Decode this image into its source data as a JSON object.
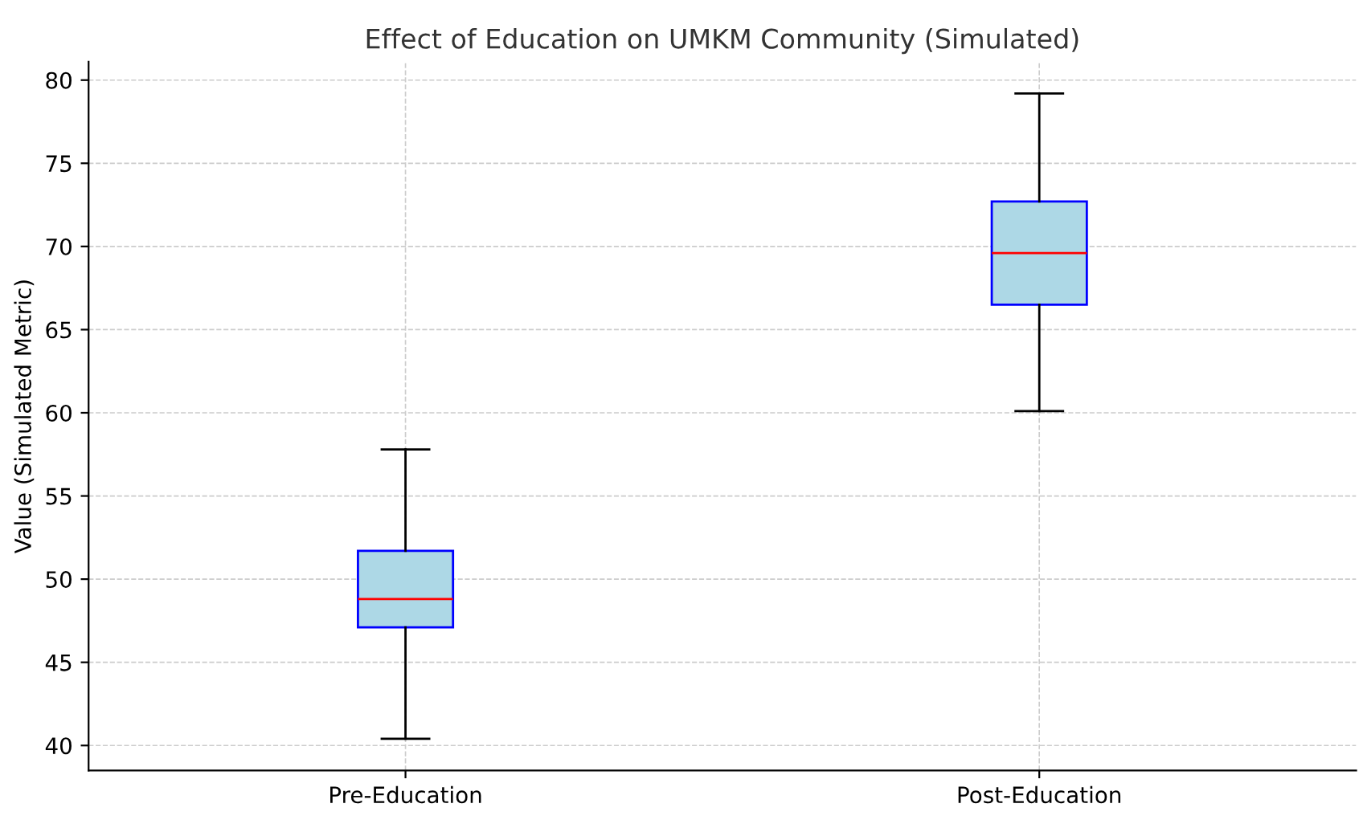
{
  "chart_data": {
    "type": "box",
    "title": "Effect of Education on UMKM Community (Simulated)",
    "ylabel": "Value (Simulated Metric)",
    "categories": [
      "Pre-Education",
      "Post-Education"
    ],
    "boxes": [
      {
        "low": 40.4,
        "q1": 47.1,
        "median": 48.8,
        "q3": 51.7,
        "high": 57.8
      },
      {
        "low": 60.1,
        "q1": 66.5,
        "median": 69.6,
        "q3": 72.7,
        "high": 79.2
      }
    ],
    "color": "#add8e6",
    "ylim": [
      38.5,
      81.1
    ],
    "yticks": [
      40,
      45,
      50,
      55,
      60,
      65,
      70,
      75,
      80
    ],
    "grid": true
  }
}
